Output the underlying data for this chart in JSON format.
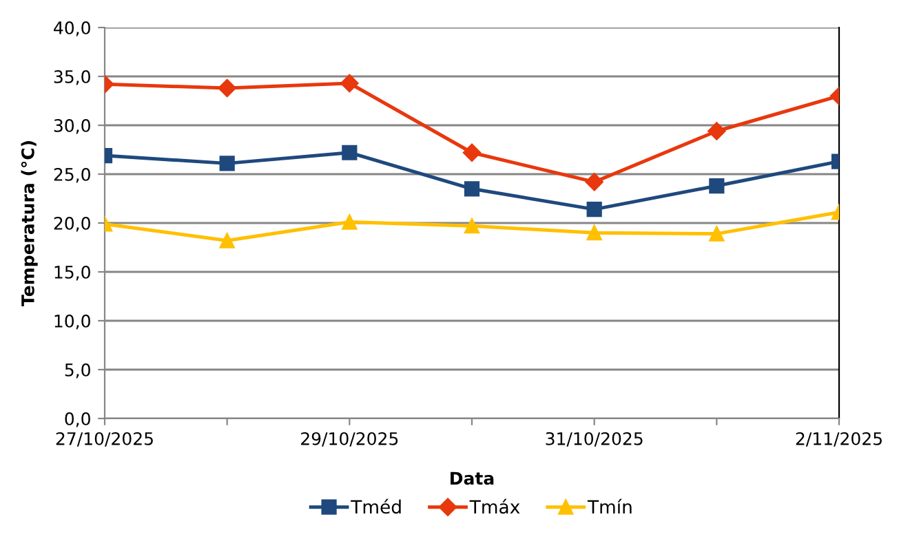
{
  "chart_data": {
    "type": "line",
    "xlabel": "Data",
    "ylabel": "Temperatura (°C)",
    "x": [
      "2025-10-27",
      "2025-10-28",
      "2025-10-29",
      "2025-10-30",
      "2025-10-31",
      "2025-11-01",
      "2025-11-02"
    ],
    "series": [
      {
        "name": "Tméd",
        "color": "#1f497d",
        "marker": "square",
        "values": [
          26.9,
          26.1,
          27.2,
          23.5,
          21.4,
          23.8,
          26.3
        ]
      },
      {
        "name": "Tmáx",
        "color": "#e8380d",
        "marker": "diamond",
        "values": [
          34.2,
          33.8,
          34.3,
          27.2,
          24.2,
          29.4,
          33.0
        ]
      },
      {
        "name": "Tmín",
        "color": "#ffc000",
        "marker": "triangle",
        "values": [
          19.9,
          18.2,
          20.1,
          19.7,
          19.0,
          18.9,
          21.1
        ]
      }
    ],
    "xlim": [
      "2025-10-27",
      "2025-11-02"
    ],
    "xticks": [
      {
        "value": "2025-10-27",
        "label": "27/10/2025"
      },
      {
        "value": "2025-10-28",
        "label": null
      },
      {
        "value": "2025-10-29",
        "label": "29/10/2025"
      },
      {
        "value": "2025-10-30",
        "label": null
      },
      {
        "value": "2025-10-31",
        "label": "31/10/2025"
      },
      {
        "value": "2025-11-01",
        "label": null
      },
      {
        "value": "2025-11-02",
        "label": "2/11/2025"
      }
    ],
    "ylim": [
      0,
      40
    ],
    "yticks": [
      {
        "value": 0,
        "label": "0,0"
      },
      {
        "value": 5,
        "label": "5,0"
      },
      {
        "value": 10,
        "label": "10,0"
      },
      {
        "value": 15,
        "label": "15,0"
      },
      {
        "value": 20,
        "label": "20,0"
      },
      {
        "value": 25,
        "label": "25,0"
      },
      {
        "value": 30,
        "label": "30,0"
      },
      {
        "value": 35,
        "label": "35,0"
      },
      {
        "value": 40,
        "label": "40,0"
      }
    ],
    "grid": "y",
    "legend": "bottom",
    "line_style": "solid"
  }
}
